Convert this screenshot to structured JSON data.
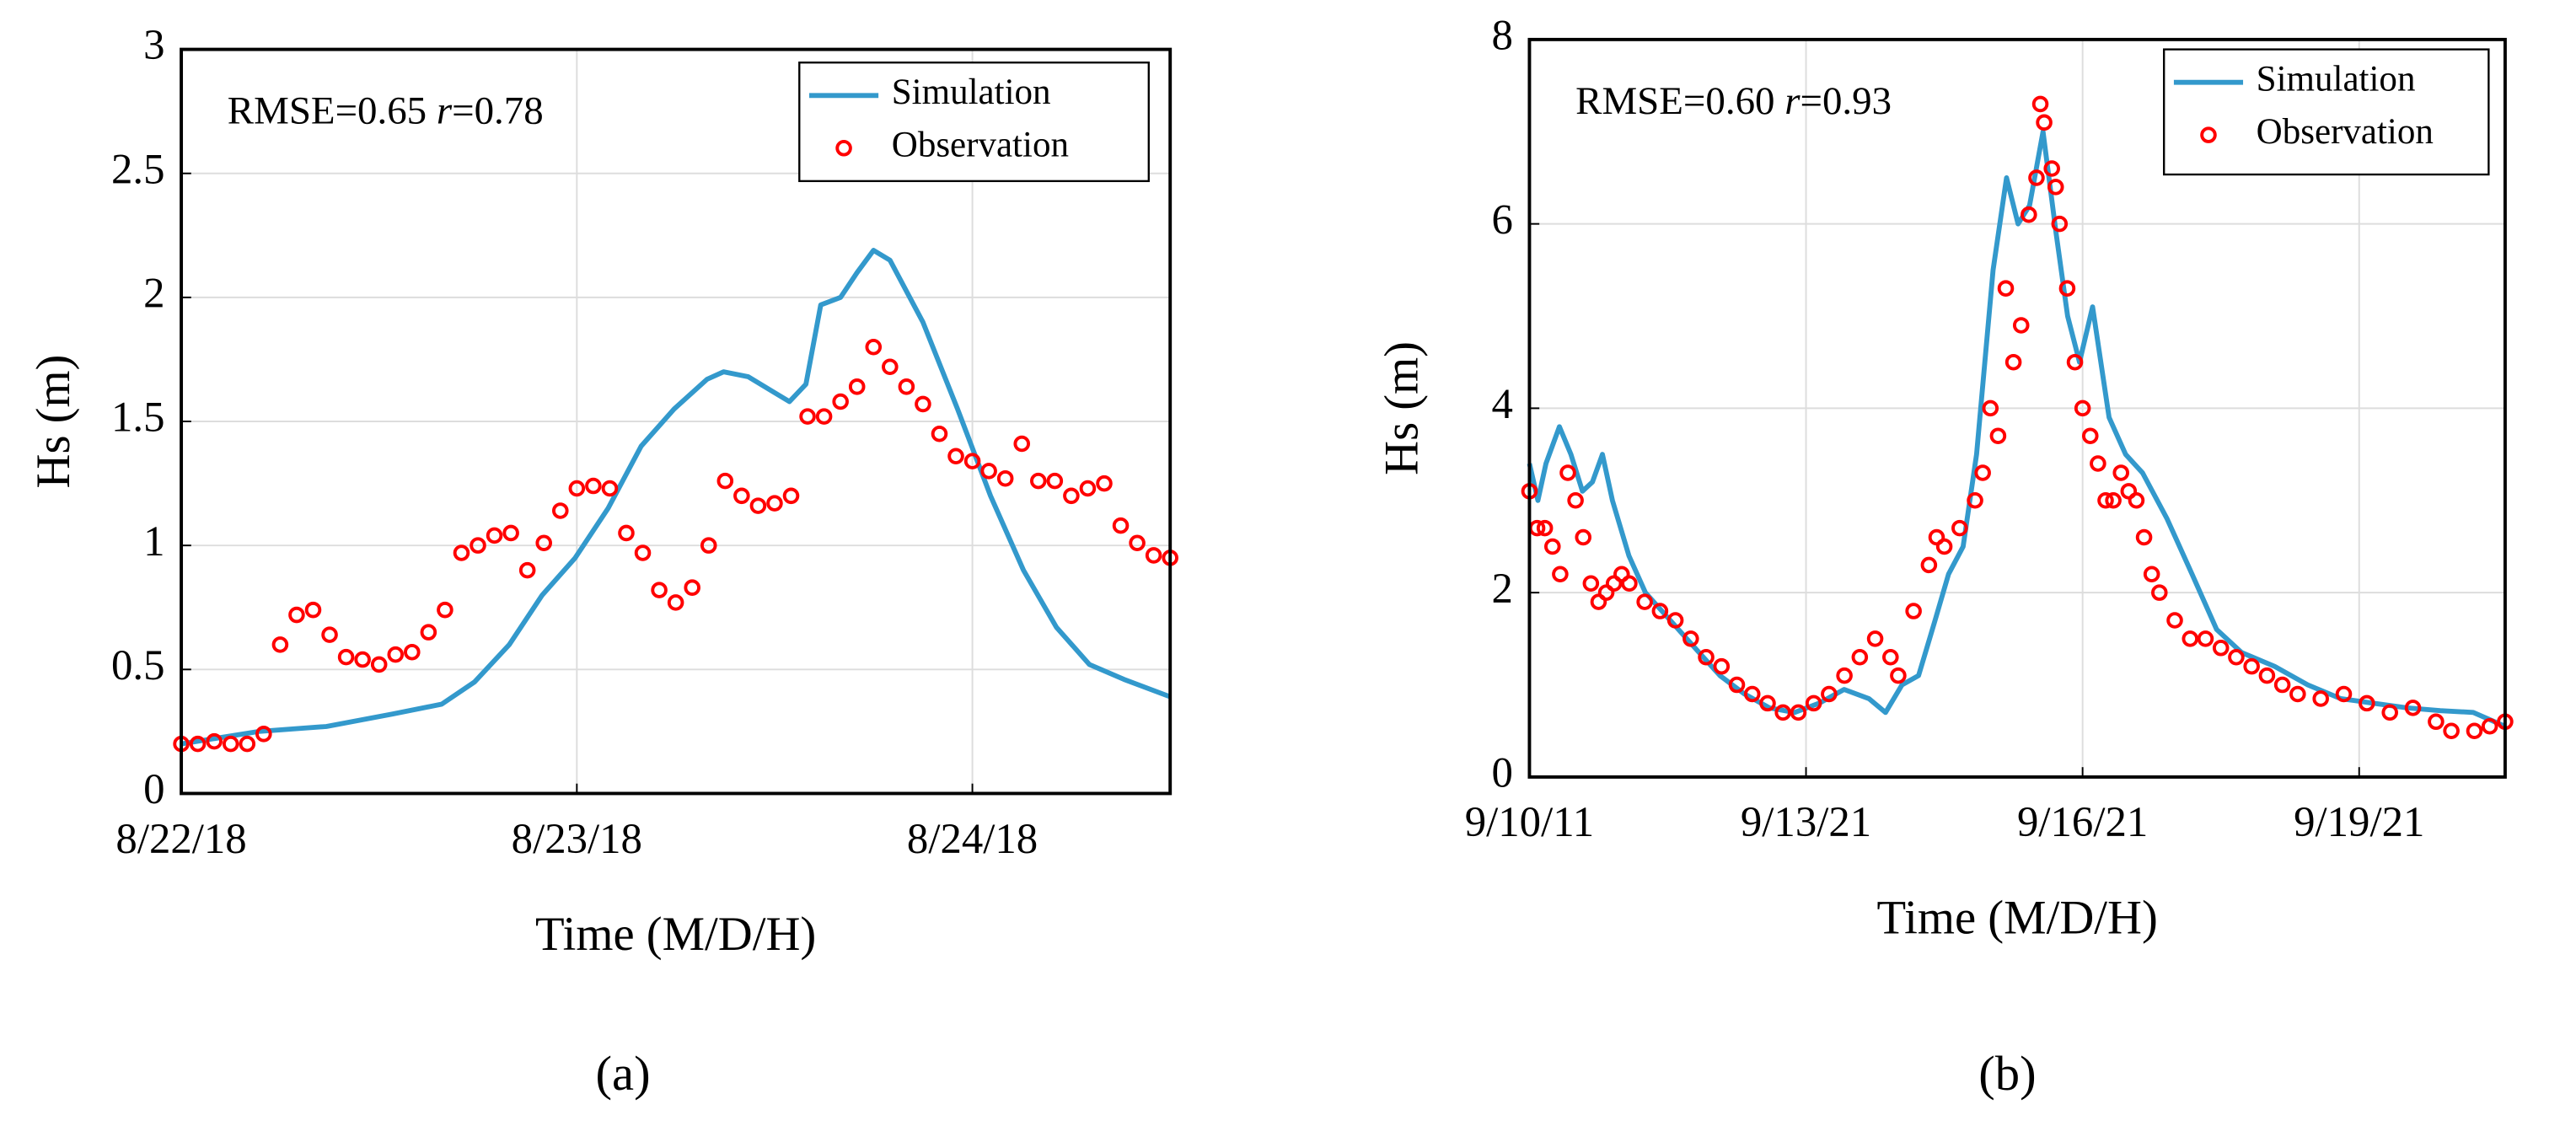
{
  "chart_data": [
    {
      "type": "line",
      "panel_label": "(a)",
      "xlabel": "Time (M/D/H)",
      "ylabel": "Hs (m)",
      "annotation": [
        "RMSE=0.65",
        "r",
        "=0.78"
      ],
      "xlim": [
        0,
        60
      ],
      "xticks": [
        {
          "value": 0,
          "label": "8/22/18"
        },
        {
          "value": 24,
          "label": "8/23/18"
        },
        {
          "value": 48,
          "label": "8/24/18"
        }
      ],
      "ylim": [
        0,
        3
      ],
      "yticks": [
        0,
        0.5,
        1,
        1.5,
        2,
        2.5,
        3
      ],
      "grid": true,
      "legend": "upper right",
      "series": [
        {
          "name": "Simulation",
          "color": "#3399cc",
          "style": "line",
          "x": [
            0,
            4.7,
            8.8,
            12.8,
            15.8,
            17.8,
            19.9,
            21.9,
            23.9,
            25.9,
            27.9,
            29.9,
            31.9,
            32.9,
            34.4,
            35.9,
            36.9,
            37.9,
            38.8,
            40,
            41,
            42,
            43,
            45,
            47.1,
            49.1,
            51.1,
            53.1,
            55.1,
            57.2,
            60
          ],
          "values": [
            0.2,
            0.25,
            0.27,
            0.32,
            0.36,
            0.45,
            0.6,
            0.8,
            0.95,
            1.15,
            1.4,
            1.55,
            1.67,
            1.7,
            1.68,
            1.62,
            1.58,
            1.65,
            1.97,
            2.0,
            2.1,
            2.19,
            2.15,
            1.9,
            1.55,
            1.2,
            0.9,
            0.67,
            0.52,
            0.46,
            0.39
          ]
        },
        {
          "name": "Observation",
          "color": "#ff0000",
          "style": "markers",
          "x": [
            0,
            1,
            2,
            3,
            4,
            5,
            6,
            7,
            8,
            9,
            10,
            11,
            12,
            13,
            14,
            15,
            16,
            17,
            18,
            19,
            20,
            21,
            22,
            23,
            24,
            25,
            26,
            27,
            28,
            29,
            30,
            31,
            32,
            33,
            34,
            35,
            36,
            37,
            38,
            39,
            40,
            41,
            42,
            43,
            44,
            45,
            46,
            47,
            48,
            49,
            50,
            51,
            52,
            53,
            54,
            55,
            56,
            57,
            58,
            59,
            60
          ],
          "values": [
            0.2,
            0.2,
            0.21,
            0.2,
            0.2,
            0.24,
            0.6,
            0.72,
            0.74,
            0.64,
            0.55,
            0.54,
            0.52,
            0.56,
            0.57,
            0.65,
            0.74,
            0.97,
            1.0,
            1.04,
            1.05,
            0.9,
            1.01,
            1.14,
            1.23,
            1.24,
            1.23,
            1.05,
            0.97,
            0.82,
            0.77,
            0.83,
            1.0,
            1.26,
            1.2,
            1.16,
            1.17,
            1.2,
            1.52,
            1.52,
            1.58,
            1.64,
            1.8,
            1.72,
            1.64,
            1.57,
            1.45,
            1.36,
            1.34,
            1.3,
            1.27,
            1.41,
            1.26,
            1.26,
            1.2,
            1.23,
            1.25,
            1.08,
            1.01,
            0.96,
            0.95
          ]
        }
      ]
    },
    {
      "type": "line",
      "panel_label": "(b)",
      "xlabel": "Time (M/D/H)",
      "ylabel": "Hs (m)",
      "annotation": [
        "RMSE=0.60",
        "r",
        "=0.93"
      ],
      "xlim": [
        0,
        254
      ],
      "xticks": [
        {
          "value": 0,
          "label": "9/10/11"
        },
        {
          "value": 72,
          "label": "9/13/21"
        },
        {
          "value": 144,
          "label": "9/16/21"
        },
        {
          "value": 216,
          "label": "9/19/21"
        }
      ],
      "ylim": [
        0,
        8
      ],
      "yticks": [
        0,
        2,
        4,
        6,
        8
      ],
      "grid": true,
      "legend": "upper right",
      "series": [
        {
          "name": "Simulation",
          "color": "#3399cc",
          "style": "line",
          "x": [
            0,
            2.2,
            4.3,
            7.8,
            10.8,
            13.8,
            16.4,
            19,
            21.6,
            25.9,
            30.2,
            34.5,
            38.8,
            43.1,
            49.6,
            56,
            62.5,
            69,
            75.4,
            81.9,
            88.4,
            92.7,
            97,
            101.3,
            105.6,
            109.1,
            112.9,
            116.4,
            120.7,
            124.2,
            127.2,
            130.2,
            133.7,
            137.1,
            140.1,
            143.2,
            146.6,
            150.9,
            155.2,
            159.6,
            166,
            172.5,
            178.9,
            185.4,
            194,
            202.6,
            211.2,
            219.8,
            228.5,
            237.1,
            245.7,
            254
          ],
          "values": [
            3.4,
            3.0,
            3.4,
            3.8,
            3.5,
            3.1,
            3.2,
            3.5,
            3.0,
            2.4,
            2.0,
            1.8,
            1.6,
            1.4,
            1.1,
            0.9,
            0.75,
            0.7,
            0.8,
            0.95,
            0.85,
            0.7,
            1.0,
            1.1,
            1.7,
            2.2,
            2.5,
            3.5,
            5.5,
            6.5,
            6.0,
            6.2,
            7.0,
            5.9,
            5.0,
            4.5,
            5.1,
            3.9,
            3.5,
            3.3,
            2.8,
            2.2,
            1.6,
            1.35,
            1.2,
            1.0,
            0.85,
            0.8,
            0.75,
            0.72,
            0.7,
            0.55
          ]
        },
        {
          "name": "Observation",
          "color": "#ff0000",
          "style": "markers",
          "x": [
            0,
            2,
            4,
            6,
            8,
            10,
            12,
            14,
            16,
            18,
            20,
            22,
            24,
            26,
            30,
            34,
            38,
            42,
            46,
            50,
            54,
            58,
            62,
            66,
            70,
            74,
            78,
            82,
            86,
            90,
            94,
            96,
            100,
            104,
            106,
            108,
            112,
            116,
            118,
            120,
            122,
            124,
            126,
            128,
            130,
            132,
            133,
            134,
            136,
            137,
            138,
            140,
            142,
            144,
            146,
            148,
            150,
            152,
            154,
            156,
            158,
            160,
            162,
            164,
            168,
            172,
            176,
            180,
            184,
            188,
            192,
            196,
            200,
            206,
            212,
            218,
            224,
            230,
            236,
            240,
            246,
            250,
            254
          ],
          "values": [
            3.1,
            2.7,
            2.7,
            2.5,
            2.2,
            3.3,
            3.0,
            2.6,
            2.1,
            1.9,
            2.0,
            2.1,
            2.2,
            2.1,
            1.9,
            1.8,
            1.7,
            1.5,
            1.3,
            1.2,
            1.0,
            0.9,
            0.8,
            0.7,
            0.7,
            0.8,
            0.9,
            1.1,
            1.3,
            1.5,
            1.3,
            1.1,
            1.8,
            2.3,
            2.6,
            2.5,
            2.7,
            3.0,
            3.3,
            4.0,
            3.7,
            5.3,
            4.5,
            4.9,
            6.1,
            6.5,
            7.3,
            7.1,
            6.6,
            6.4,
            6.0,
            5.3,
            4.5,
            4.0,
            3.7,
            3.4,
            3.0,
            3.0,
            3.3,
            3.1,
            3.0,
            2.6,
            2.2,
            2.0,
            1.7,
            1.5,
            1.5,
            1.4,
            1.3,
            1.2,
            1.1,
            1.0,
            0.9,
            0.85,
            0.9,
            0.8,
            0.7,
            0.75,
            0.6,
            0.5,
            0.5,
            0.55,
            0.6
          ]
        }
      ]
    }
  ]
}
